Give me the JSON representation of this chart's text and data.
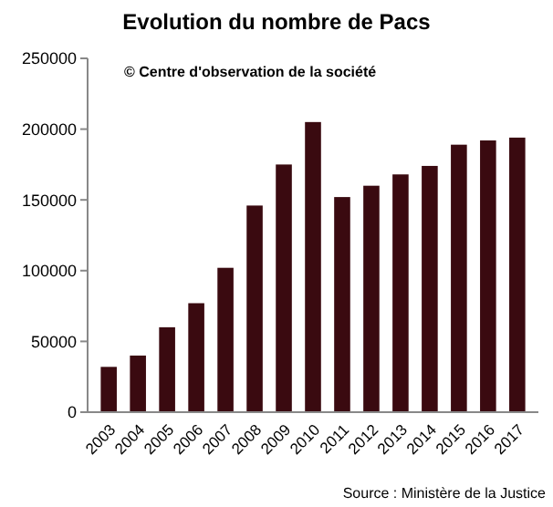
{
  "chart_data": {
    "type": "bar",
    "title": "Evolution du nombre de Pacs",
    "categories": [
      "2003",
      "2004",
      "2005",
      "2006",
      "2007",
      "2008",
      "2009",
      "2010",
      "2011",
      "2012",
      "2013",
      "2014",
      "2015",
      "2016",
      "2017"
    ],
    "values": [
      32000,
      40000,
      60000,
      77000,
      102000,
      146000,
      175000,
      205000,
      152000,
      160000,
      168000,
      174000,
      189000,
      192000,
      194000
    ],
    "color": "#3a0a10",
    "ylim": [
      0,
      250000
    ],
    "yticks": [
      0,
      50000,
      100000,
      150000,
      200000,
      250000
    ],
    "grid": false,
    "annotations": [
      "© Centre d'observation  de la société",
      "Source : Ministère de la Justice"
    ]
  }
}
